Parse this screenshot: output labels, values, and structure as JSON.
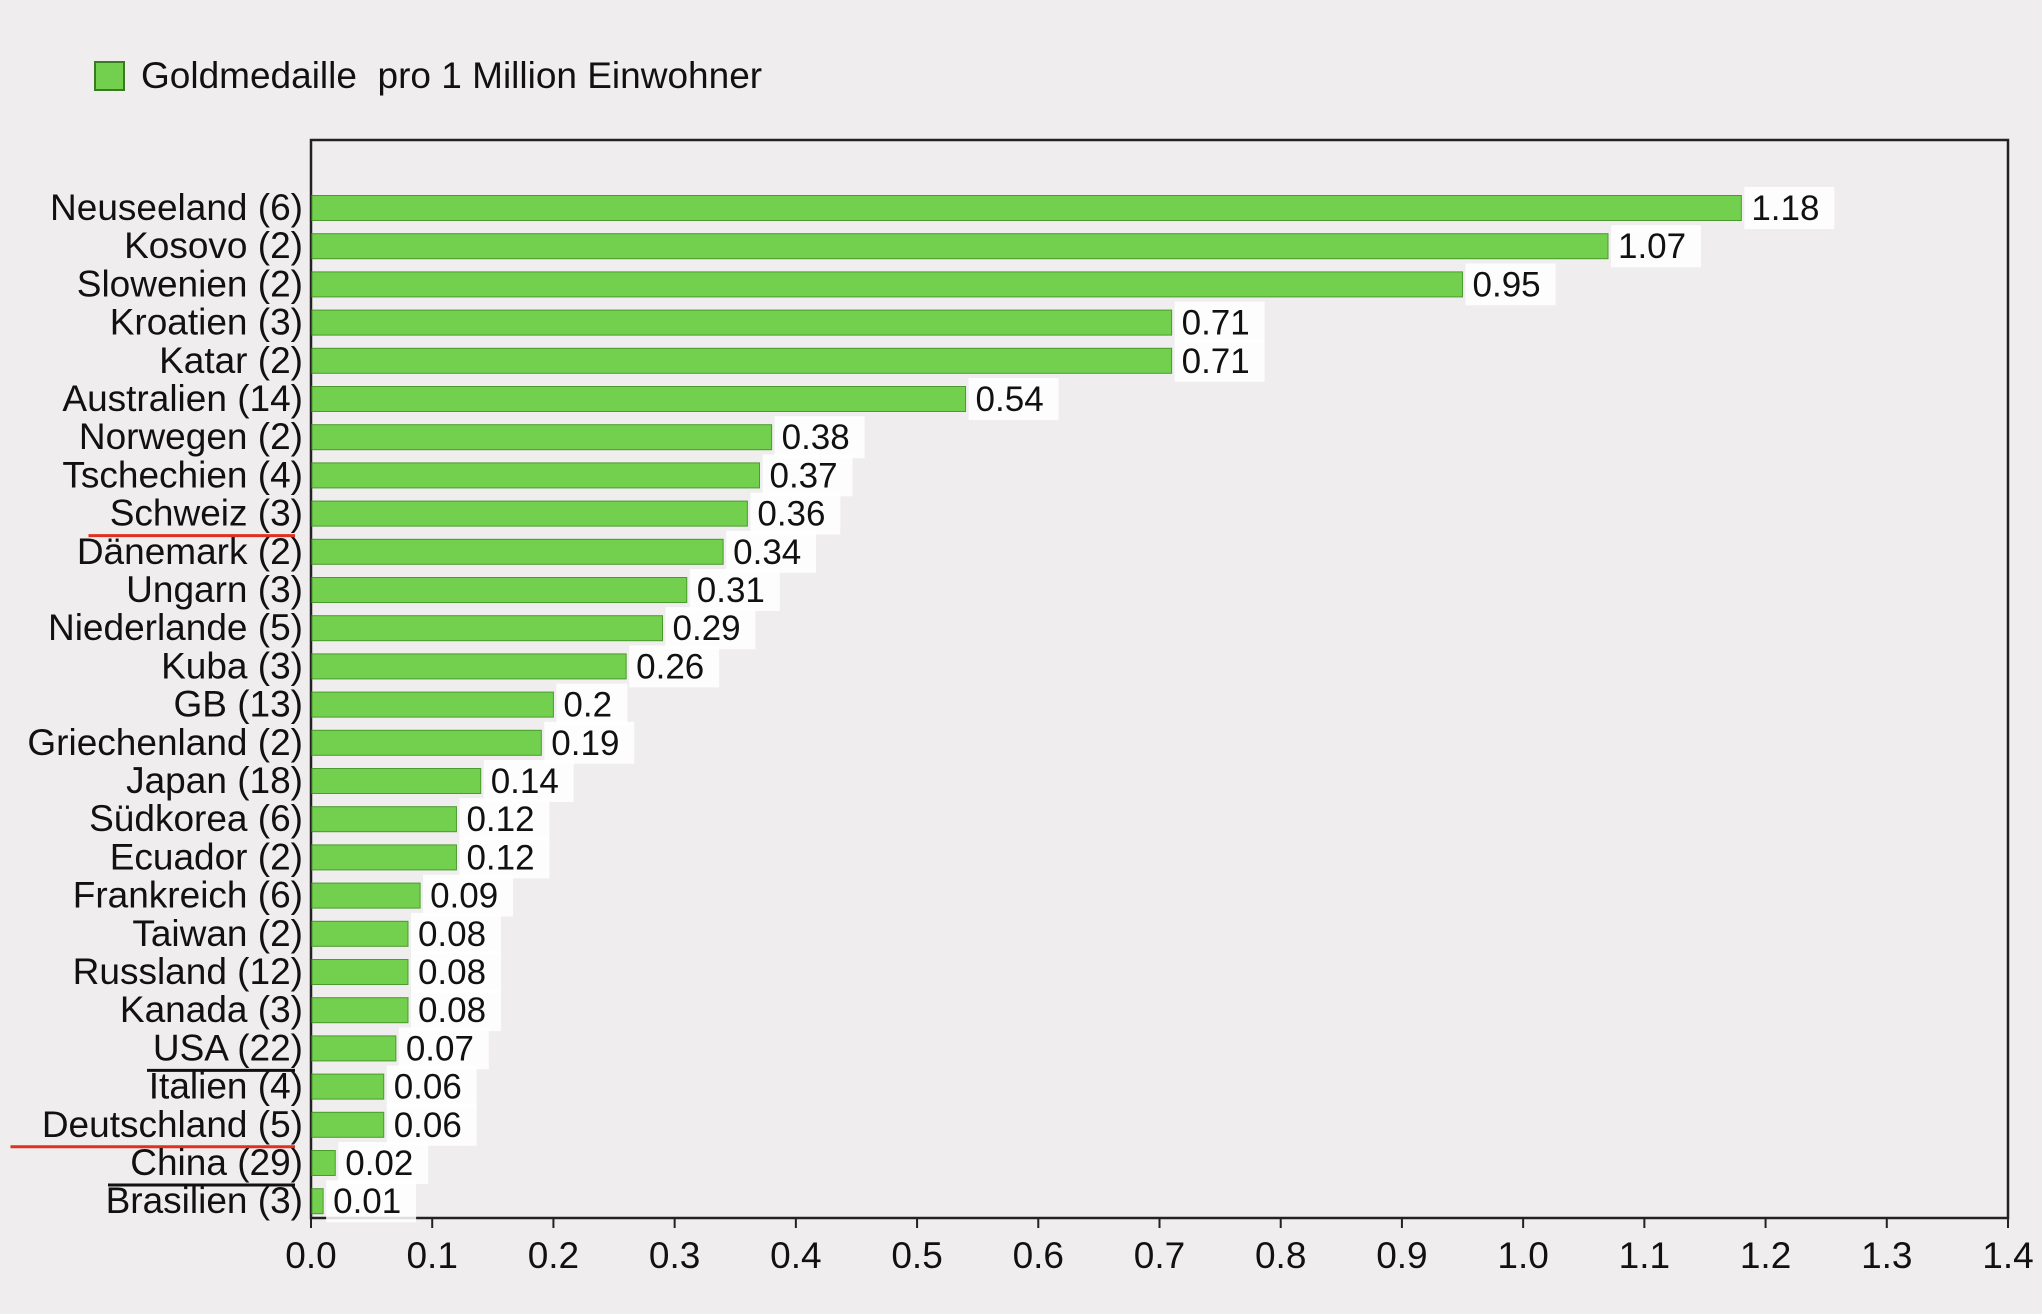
{
  "colors": {
    "background": "#efedee",
    "bar": "#72d04e",
    "bar_edge": "#4a9a2c",
    "label_box": "#ffffff",
    "underline_red": "#e03020",
    "underline_black": "#111111"
  },
  "chart_data": {
    "type": "bar",
    "orientation": "horizontal",
    "title": "",
    "xlabel": "",
    "ylabel": "",
    "xlim": [
      0,
      1.4
    ],
    "grid": false,
    "legend_position": "top-left",
    "x_ticks": [
      "0.0",
      "0.1",
      "0.2",
      "0.3",
      "0.4",
      "0.5",
      "0.6",
      "0.7",
      "0.8",
      "0.9",
      "1.0",
      "1.1",
      "1.2",
      "1.3",
      "1.4"
    ],
    "series": [
      {
        "name": "Goldmedaille  pro 1 Million Einwohner",
        "color": "#72d04e"
      }
    ],
    "categories": [
      "Neuseeland (6)",
      "Kosovo (2)",
      "Slowenien (2)",
      "Kroatien (3)",
      "Katar (2)",
      "Australien (14)",
      "Norwegen (2)",
      "Tschechien (4)",
      "Schweiz (3)",
      "Dänemark (2)",
      "Ungarn (3)",
      "Niederlande (5)",
      "Kuba (3)",
      "GB (13)",
      "Griechenland (2)",
      "Japan (18)",
      "Südkorea (6)",
      "Ecuador (2)",
      "Frankreich (6)",
      "Taiwan (2)",
      "Russland (12)",
      "Kanada (3)",
      "USA (22)",
      "Italien (4)",
      "Deutschland (5)",
      "China (29)",
      "Brasilien (3)"
    ],
    "values": [
      1.18,
      1.07,
      0.95,
      0.71,
      0.71,
      0.54,
      0.38,
      0.37,
      0.36,
      0.34,
      0.31,
      0.29,
      0.26,
      0.2,
      0.19,
      0.14,
      0.12,
      0.12,
      0.09,
      0.08,
      0.08,
      0.08,
      0.07,
      0.06,
      0.06,
      0.02,
      0.01
    ],
    "value_labels": [
      "1.18",
      "1.07",
      "0.95",
      "0.71",
      "0.71",
      "0.54",
      "0.38",
      "0.37",
      "0.36",
      "0.34",
      "0.31",
      "0.29",
      "0.26",
      "0.2",
      "0.19",
      "0.14",
      "0.12",
      "0.12",
      "0.09",
      "0.08",
      "0.08",
      "0.08",
      "0.07",
      "0.06",
      "0.06",
      "0.02",
      "0.01"
    ],
    "underlined_categories": [
      {
        "category": "Schweiz (3)",
        "color": "red"
      },
      {
        "category": "USA (22)",
        "color": "black"
      },
      {
        "category": "Deutschland (5)",
        "color": "red"
      },
      {
        "category": "China (29)",
        "color": "black"
      }
    ]
  }
}
